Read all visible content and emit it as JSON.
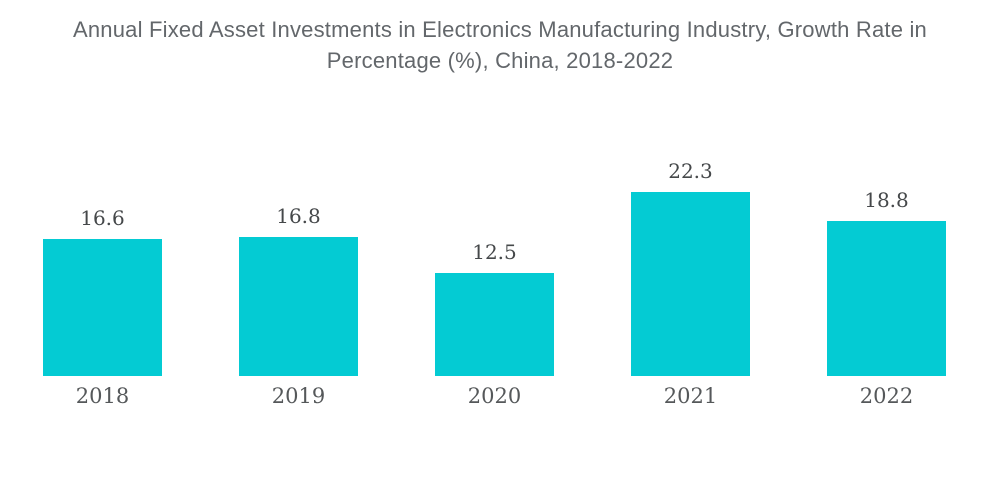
{
  "title": "Annual Fixed Asset Investments in Electronics Manufacturing Industry, Growth Rate in Percentage (%), China, 2018-2022",
  "colors": {
    "background": "#FFFFFF",
    "bar": "#04CBD3",
    "title_text": "#63676B",
    "value_label_text": "#45484A",
    "year_label_text": "#55585A"
  },
  "chart_data": {
    "type": "bar",
    "title": "Annual Fixed Asset Investments in Electronics Manufacturing Industry, Growth Rate in Percentage (%), China, 2018-2022",
    "categories": [
      "2018",
      "2019",
      "2020",
      "2021",
      "2022"
    ],
    "values": [
      16.6,
      16.8,
      12.5,
      22.3,
      18.8
    ],
    "data_labels": [
      16.6,
      16.8,
      12.5,
      22.3,
      18.8
    ],
    "xlabel": "",
    "ylabel": "",
    "ylim": [
      0,
      24
    ],
    "grid": false,
    "legend": false,
    "axes_visible": false,
    "bar_color": "#04CBD3"
  }
}
